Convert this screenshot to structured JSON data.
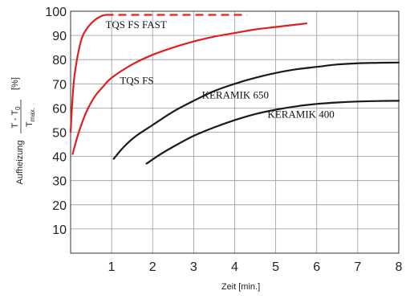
{
  "chart_data": {
    "type": "line",
    "x_ticks": [
      "1",
      "2",
      "3",
      "4",
      "5",
      "6",
      "7",
      "8"
    ],
    "y_ticks": [
      "10",
      "20",
      "30",
      "40",
      "50",
      "60",
      "70",
      "80",
      "90",
      "100"
    ],
    "xlabel": "Zeit [min.]",
    "ylabel": {
      "prefix": "Aufheizung",
      "numerator": "T - T",
      "numerator_sub": "0",
      "denominator": "T",
      "denominator_sub": "max.",
      "unit": "[%]"
    },
    "xlim": [
      0,
      8
    ],
    "ylim": [
      0,
      100
    ],
    "grid": true,
    "series": [
      {
        "name": "TQS FS FAST",
        "color": "#e02020",
        "points": [
          [
            0.0,
            50
          ],
          [
            0.05,
            65
          ],
          [
            0.1,
            74
          ],
          [
            0.2,
            84
          ],
          [
            0.3,
            90
          ],
          [
            0.45,
            94
          ],
          [
            0.6,
            96.5
          ],
          [
            0.75,
            98
          ],
          [
            0.85,
            98.5
          ]
        ],
        "dashed_extension": [
          [
            0.85,
            98.5
          ],
          [
            4.3,
            98.5
          ]
        ]
      },
      {
        "name": "TQS FS",
        "color": "#e02020",
        "points": [
          [
            0.05,
            41
          ],
          [
            0.2,
            50
          ],
          [
            0.4,
            59
          ],
          [
            0.6,
            65
          ],
          [
            0.8,
            69
          ],
          [
            1.0,
            72.5
          ],
          [
            1.5,
            78
          ],
          [
            2.0,
            82
          ],
          [
            2.5,
            85
          ],
          [
            3.0,
            87.5
          ],
          [
            3.5,
            89.5
          ],
          [
            4.0,
            91
          ],
          [
            4.5,
            92.5
          ],
          [
            5.0,
            93.5
          ],
          [
            5.5,
            94.5
          ],
          [
            5.75,
            95
          ]
        ]
      },
      {
        "name": "KERAMIK 650",
        "color": "#1a1a1a",
        "points": [
          [
            1.05,
            39
          ],
          [
            1.3,
            44
          ],
          [
            1.6,
            48.5
          ],
          [
            2.0,
            53
          ],
          [
            2.5,
            58.5
          ],
          [
            3.0,
            63
          ],
          [
            3.5,
            67
          ],
          [
            4.0,
            70
          ],
          [
            4.5,
            72.5
          ],
          [
            5.0,
            74.5
          ],
          [
            5.5,
            76
          ],
          [
            6.0,
            77
          ],
          [
            6.5,
            78
          ],
          [
            7.0,
            78.5
          ],
          [
            7.5,
            78.7
          ],
          [
            8.0,
            78.8
          ]
        ]
      },
      {
        "name": "KERAMIK 400",
        "color": "#1a1a1a",
        "points": [
          [
            1.85,
            37
          ],
          [
            2.2,
            41
          ],
          [
            2.5,
            44
          ],
          [
            3.0,
            48.5
          ],
          [
            3.5,
            52
          ],
          [
            4.0,
            55
          ],
          [
            4.5,
            57.5
          ],
          [
            5.0,
            59.3
          ],
          [
            5.5,
            60.7
          ],
          [
            6.0,
            61.7
          ],
          [
            6.5,
            62.3
          ],
          [
            7.0,
            62.7
          ],
          [
            7.5,
            62.9
          ],
          [
            8.0,
            63
          ]
        ]
      }
    ],
    "annotations": [
      {
        "text": "TQS FS FAST",
        "x": 0.85,
        "y": 93
      },
      {
        "text": "TQS FS",
        "x": 1.2,
        "y": 70
      },
      {
        "text": "KERAMIK 650",
        "x": 3.2,
        "y": 64
      },
      {
        "text": "KERAMIK 400",
        "x": 4.8,
        "y": 56
      }
    ]
  }
}
